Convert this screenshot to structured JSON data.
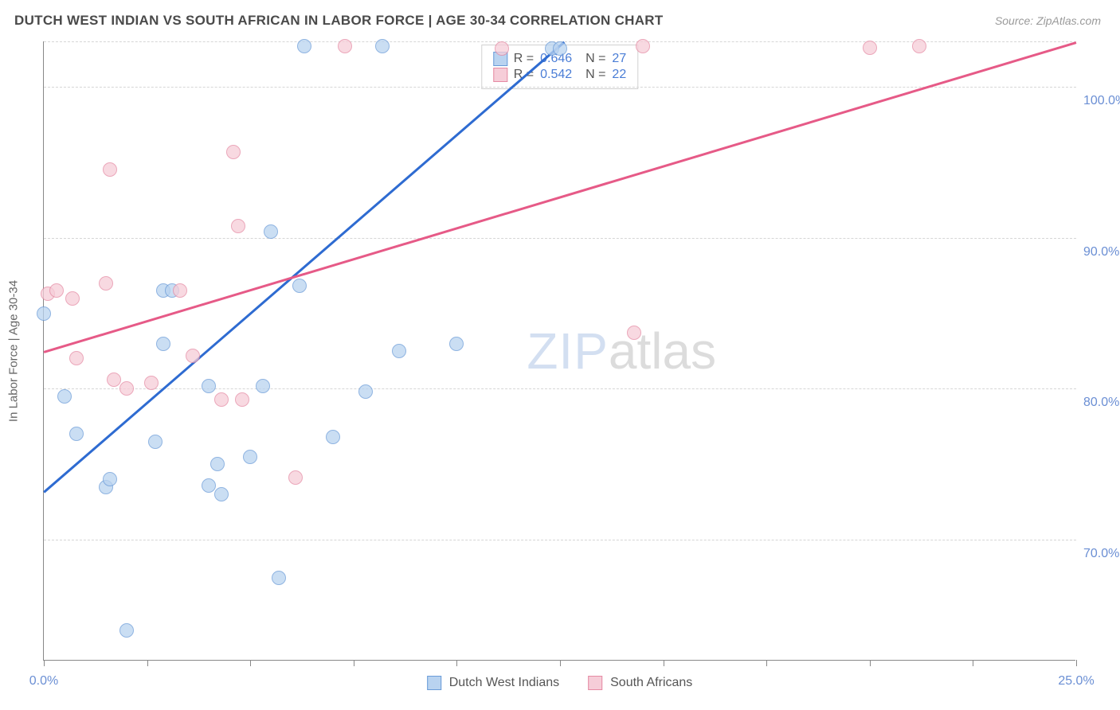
{
  "title": "DUTCH WEST INDIAN VS SOUTH AFRICAN IN LABOR FORCE | AGE 30-34 CORRELATION CHART",
  "source_label": "Source: ZipAtlas.com",
  "y_axis_label": "In Labor Force | Age 30-34",
  "watermark": {
    "zip": "ZIP",
    "atlas": "atlas"
  },
  "chart": {
    "type": "scatter",
    "background_color": "#ffffff",
    "grid_color": "#d6d6d6",
    "axis_color": "#888888",
    "xlim": [
      0,
      25
    ],
    "ylim": [
      62,
      103
    ],
    "x_ticks": [
      0,
      2.5,
      5,
      7.5,
      10,
      12.5,
      15,
      17.5,
      20,
      22.5,
      25
    ],
    "x_tick_labels": {
      "0": "0.0%",
      "25": "25.0%"
    },
    "y_gridlines": [
      70,
      80,
      90,
      100,
      103
    ],
    "y_tick_labels": {
      "70": "70.0%",
      "80": "80.0%",
      "90": "90.0%",
      "100": "100.0%"
    },
    "marker_radius": 9,
    "marker_opacity": 0.75,
    "series": [
      {
        "name": "Dutch West Indians",
        "fill_color": "#b9d3f0",
        "stroke_color": "#6a9bd8",
        "trend_color": "#2e6bd1",
        "R": "0.646",
        "N": "27",
        "trend": {
          "x1": 0,
          "y1": 73.2,
          "x2": 12.6,
          "y2": 103
        },
        "points": [
          {
            "x": 0.0,
            "y": 85.0
          },
          {
            "x": 0.5,
            "y": 79.5
          },
          {
            "x": 0.8,
            "y": 77.0
          },
          {
            "x": 1.5,
            "y": 73.5
          },
          {
            "x": 1.6,
            "y": 74.0
          },
          {
            "x": 2.0,
            "y": 64.0
          },
          {
            "x": 2.7,
            "y": 76.5
          },
          {
            "x": 2.9,
            "y": 86.5
          },
          {
            "x": 2.9,
            "y": 83.0
          },
          {
            "x": 3.1,
            "y": 86.5
          },
          {
            "x": 4.0,
            "y": 73.6
          },
          {
            "x": 4.0,
            "y": 80.2
          },
          {
            "x": 4.2,
            "y": 75.0
          },
          {
            "x": 4.3,
            "y": 73.0
          },
          {
            "x": 5.0,
            "y": 75.5
          },
          {
            "x": 5.3,
            "y": 80.2
          },
          {
            "x": 5.5,
            "y": 90.4
          },
          {
            "x": 5.7,
            "y": 67.5
          },
          {
            "x": 6.2,
            "y": 86.8
          },
          {
            "x": 6.3,
            "y": 102.7
          },
          {
            "x": 7.0,
            "y": 76.8
          },
          {
            "x": 7.8,
            "y": 79.8
          },
          {
            "x": 8.2,
            "y": 102.7
          },
          {
            "x": 8.6,
            "y": 82.5
          },
          {
            "x": 10.0,
            "y": 83.0
          },
          {
            "x": 12.3,
            "y": 102.5
          },
          {
            "x": 12.5,
            "y": 102.5
          }
        ]
      },
      {
        "name": "South Africans",
        "fill_color": "#f6cdd8",
        "stroke_color": "#e58aa3",
        "trend_color": "#e65a87",
        "R": "0.542",
        "N": "22",
        "trend": {
          "x1": 0,
          "y1": 82.5,
          "x2": 25,
          "y2": 103
        },
        "points": [
          {
            "x": 0.1,
            "y": 86.3
          },
          {
            "x": 0.3,
            "y": 86.5
          },
          {
            "x": 0.7,
            "y": 86.0
          },
          {
            "x": 0.8,
            "y": 82.0
          },
          {
            "x": 1.5,
            "y": 87.0
          },
          {
            "x": 1.6,
            "y": 94.5
          },
          {
            "x": 1.7,
            "y": 80.6
          },
          {
            "x": 2.0,
            "y": 80.0
          },
          {
            "x": 2.6,
            "y": 80.4
          },
          {
            "x": 3.3,
            "y": 86.5
          },
          {
            "x": 3.6,
            "y": 82.2
          },
          {
            "x": 4.3,
            "y": 79.3
          },
          {
            "x": 4.6,
            "y": 95.7
          },
          {
            "x": 4.7,
            "y": 90.8
          },
          {
            "x": 4.8,
            "y": 79.3
          },
          {
            "x": 6.1,
            "y": 74.1
          },
          {
            "x": 7.3,
            "y": 102.7
          },
          {
            "x": 11.1,
            "y": 102.5
          },
          {
            "x": 14.3,
            "y": 83.7
          },
          {
            "x": 14.5,
            "y": 102.7
          },
          {
            "x": 20.0,
            "y": 102.6
          },
          {
            "x": 21.2,
            "y": 102.7
          }
        ]
      }
    ]
  },
  "legend_bottom": [
    {
      "label": "Dutch West Indians",
      "series": 0
    },
    {
      "label": "South Africans",
      "series": 1
    }
  ]
}
